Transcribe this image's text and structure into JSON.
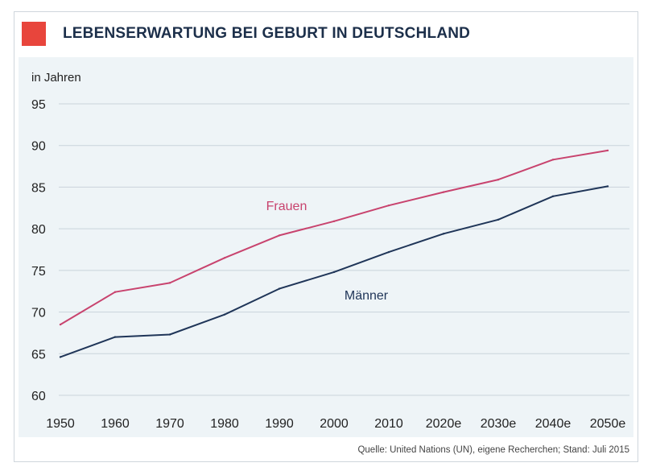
{
  "header": {
    "title": "LEBENSERWARTUNG BEI GEBURT IN DEUTSCHLAND"
  },
  "footer": {
    "source": "Quelle: United Nations (UN), eigene Recherchen; Stand: Juli 2015"
  },
  "colors": {
    "accent": "#e8453c",
    "frauen": "#c8436e",
    "maenner": "#1f3558",
    "gridline": "#c9d3db",
    "panel": "#eef4f7"
  },
  "chart_data": {
    "type": "line",
    "title": "LEBENSERWARTUNG BEI GEBURT IN DEUTSCHLAND",
    "ylabel": "in Jahren",
    "xlabel": "",
    "ylim": [
      60,
      95
    ],
    "yticks": [
      "60",
      "65",
      "70",
      "75",
      "80",
      "85",
      "90",
      "95"
    ],
    "categories": [
      "1950",
      "1960",
      "1970",
      "1980",
      "1990",
      "2000",
      "2010",
      "2020e",
      "2030e",
      "2040e",
      "2050e"
    ],
    "grid": true,
    "series": [
      {
        "name": "Frauen",
        "values": [
          68.5,
          72.4,
          73.5,
          76.5,
          79.2,
          80.9,
          82.8,
          84.4,
          85.9,
          88.3,
          89.4
        ]
      },
      {
        "name": "Männer",
        "values": [
          64.6,
          67.0,
          67.3,
          69.7,
          72.8,
          74.8,
          77.2,
          79.4,
          81.1,
          83.9,
          85.1
        ]
      }
    ]
  }
}
